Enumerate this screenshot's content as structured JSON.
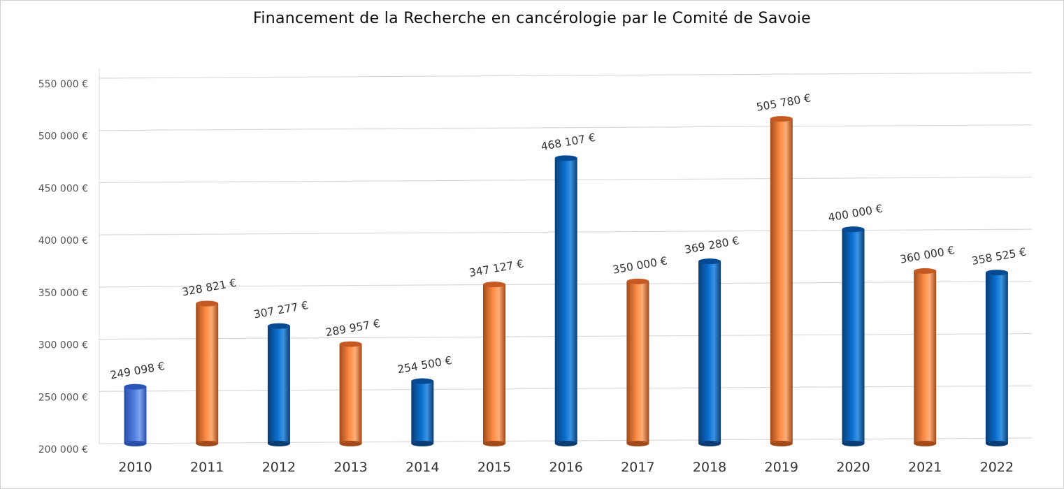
{
  "chart_data": {
    "type": "bar",
    "title": "Financement de la Recherche en cancérologie par le Comité de Savoie",
    "xlabel": "",
    "ylabel": "",
    "categories": [
      "2010",
      "2011",
      "2012",
      "2013",
      "2014",
      "2015",
      "2016",
      "2017",
      "2018",
      "2019",
      "2020",
      "2021",
      "2022"
    ],
    "values": [
      249098,
      328821,
      307277,
      289957,
      254500,
      347127,
      468107,
      350000,
      369280,
      505780,
      400000,
      360000,
      358525
    ],
    "value_labels": [
      "249 098 €",
      "328 821 €",
      "307 277 €",
      "289 957 €",
      "254 500 €",
      "347 127 €",
      "468 107 €",
      "350 000 €",
      "369 280 €",
      "505 780 €",
      "400 000 €",
      "360 000 €",
      "358 525 €"
    ],
    "bar_colors": [
      "light-blue",
      "orange",
      "blue",
      "orange",
      "blue",
      "orange",
      "blue",
      "orange",
      "blue",
      "orange",
      "blue",
      "orange",
      "blue"
    ],
    "palette": {
      "blue": {
        "dark": "#0a3d73",
        "mid": "#0a6fd0",
        "light": "#3a93e3",
        "top": "#064a94"
      },
      "light-blue": {
        "dark": "#2a4fa8",
        "mid": "#4f7ee0",
        "light": "#7ea3ee",
        "top": "#2c56b5"
      },
      "orange": {
        "dark": "#a34a1a",
        "mid": "#ff8c45",
        "light": "#ffad78",
        "top": "#c45a22"
      }
    },
    "ylim": [
      200000,
      550000
    ],
    "yticks": [
      200000,
      250000,
      300000,
      350000,
      400000,
      450000,
      500000,
      550000
    ],
    "ytick_labels": [
      "200 000 €",
      "250 000 €",
      "300 000 €",
      "350 000 €",
      "400 000 €",
      "450 000 €",
      "500 000 €",
      "550 000 €"
    ],
    "grid": true,
    "legend": "none"
  }
}
